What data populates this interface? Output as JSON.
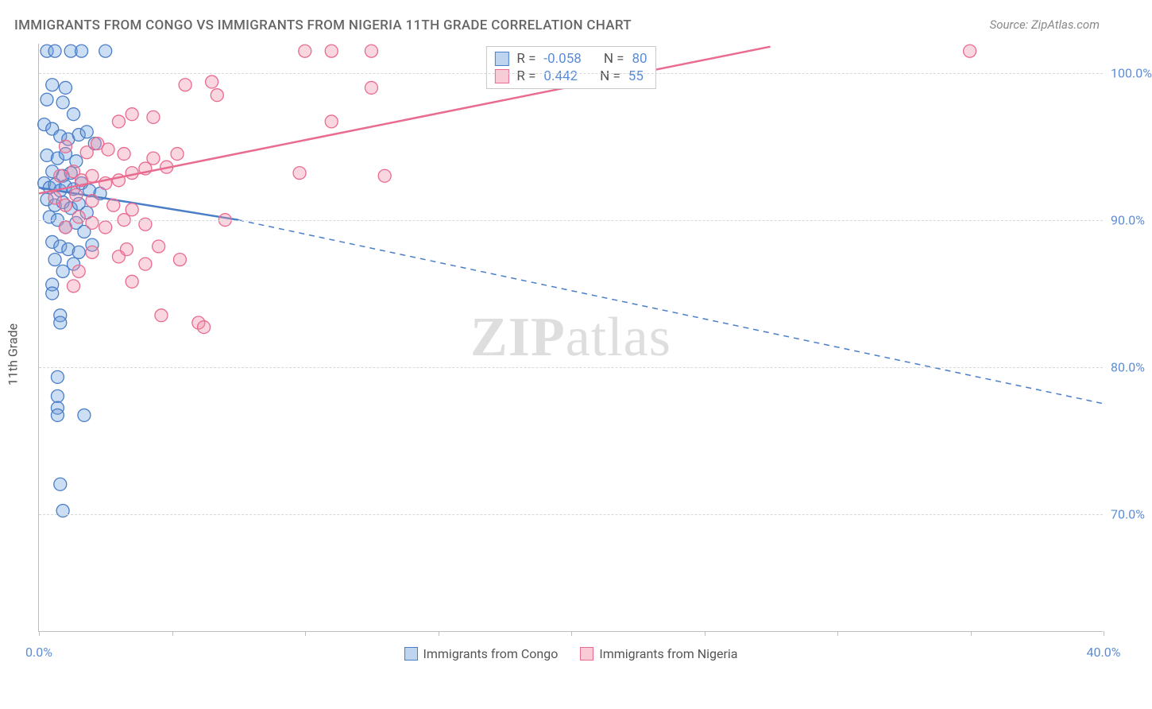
{
  "title": "IMMIGRANTS FROM CONGO VS IMMIGRANTS FROM NIGERIA 11TH GRADE CORRELATION CHART",
  "source": "Source: ZipAtlas.com",
  "y_axis_label": "11th Grade",
  "watermark_a": "ZIP",
  "watermark_b": "atlas",
  "chart": {
    "type": "scatter",
    "background_color": "#ffffff",
    "grid_color": "#d8d8d8",
    "axis_color": "#bdbdbd",
    "xlim": [
      0,
      40
    ],
    "ylim": [
      62,
      102
    ],
    "x_ticks": [
      0,
      5,
      10,
      15,
      20,
      25,
      30,
      35,
      40
    ],
    "x_tick_labels": {
      "0": "0.0%",
      "40": "40.0%"
    },
    "y_grid": [
      70,
      80,
      90,
      100
    ],
    "y_tick_labels": {
      "70": "70.0%",
      "80": "80.0%",
      "90": "90.0%",
      "100": "100.0%"
    },
    "marker_radius": 8,
    "marker_fill_opacity": 0.35,
    "line_width": 2.5,
    "series": [
      {
        "name": "Immigrants from Congo",
        "color": "#6ea0dc",
        "stroke": "#4a7ec9",
        "R": -0.058,
        "N": 80,
        "trend": {
          "x1": 0,
          "y1": 92.2,
          "x2": 7.5,
          "y2": 90.0,
          "dash_x2": 40,
          "dash_y2": 77.5
        },
        "points": [
          [
            0.3,
            101.5
          ],
          [
            0.6,
            101.5
          ],
          [
            1.2,
            101.5
          ],
          [
            1.6,
            101.5
          ],
          [
            2.5,
            101.5
          ],
          [
            0.5,
            99.2
          ],
          [
            1.0,
            99.0
          ],
          [
            0.3,
            98.2
          ],
          [
            0.9,
            98.0
          ],
          [
            1.3,
            97.2
          ],
          [
            0.2,
            96.5
          ],
          [
            0.5,
            96.2
          ],
          [
            0.8,
            95.7
          ],
          [
            1.1,
            95.5
          ],
          [
            1.5,
            95.8
          ],
          [
            1.8,
            96.0
          ],
          [
            2.1,
            95.2
          ],
          [
            0.3,
            94.4
          ],
          [
            0.7,
            94.2
          ],
          [
            1.0,
            94.5
          ],
          [
            1.4,
            94.0
          ],
          [
            0.5,
            93.3
          ],
          [
            0.9,
            93.0
          ],
          [
            1.2,
            93.2
          ],
          [
            0.2,
            92.5
          ],
          [
            0.4,
            92.2
          ],
          [
            0.6,
            92.4
          ],
          [
            0.8,
            92.0
          ],
          [
            1.0,
            92.3
          ],
          [
            1.3,
            92.1
          ],
          [
            1.6,
            92.5
          ],
          [
            1.9,
            92.0
          ],
          [
            2.3,
            91.8
          ],
          [
            0.3,
            91.4
          ],
          [
            0.6,
            91.0
          ],
          [
            0.9,
            91.2
          ],
          [
            1.2,
            90.8
          ],
          [
            1.5,
            91.1
          ],
          [
            1.8,
            90.5
          ],
          [
            0.4,
            90.2
          ],
          [
            0.7,
            90.0
          ],
          [
            1.0,
            89.5
          ],
          [
            1.4,
            89.8
          ],
          [
            1.7,
            89.2
          ],
          [
            0.5,
            88.5
          ],
          [
            0.8,
            88.2
          ],
          [
            1.1,
            88.0
          ],
          [
            1.5,
            87.8
          ],
          [
            2.0,
            88.3
          ],
          [
            0.6,
            87.3
          ],
          [
            0.9,
            86.5
          ],
          [
            1.3,
            87.0
          ],
          [
            0.5,
            85.6
          ],
          [
            0.5,
            85.0
          ],
          [
            0.8,
            83.5
          ],
          [
            0.8,
            83.0
          ],
          [
            0.7,
            79.3
          ],
          [
            0.7,
            78.0
          ],
          [
            0.7,
            77.2
          ],
          [
            0.7,
            76.7
          ],
          [
            1.7,
            76.7
          ],
          [
            0.8,
            72.0
          ],
          [
            0.9,
            70.2
          ]
        ]
      },
      {
        "name": "Immigrants from Nigeria",
        "color": "#f08ca5",
        "stroke": "#e96b8f",
        "R": 0.442,
        "N": 55,
        "trend": {
          "x1": 0,
          "y1": 91.8,
          "x2": 27.5,
          "y2": 101.8
        },
        "points": [
          [
            10.0,
            101.5
          ],
          [
            11.0,
            101.5
          ],
          [
            12.5,
            101.5
          ],
          [
            35.0,
            101.5
          ],
          [
            5.5,
            99.2
          ],
          [
            6.5,
            99.4
          ],
          [
            6.7,
            98.5
          ],
          [
            12.5,
            99.0
          ],
          [
            3.0,
            96.7
          ],
          [
            3.5,
            97.2
          ],
          [
            4.3,
            97.0
          ],
          [
            11.0,
            96.7
          ],
          [
            1.0,
            95.0
          ],
          [
            1.8,
            94.6
          ],
          [
            2.2,
            95.2
          ],
          [
            2.6,
            94.8
          ],
          [
            3.2,
            94.5
          ],
          [
            4.3,
            94.2
          ],
          [
            5.2,
            94.5
          ],
          [
            0.8,
            93.0
          ],
          [
            1.3,
            93.3
          ],
          [
            1.6,
            92.7
          ],
          [
            2.0,
            93.0
          ],
          [
            2.5,
            92.5
          ],
          [
            3.0,
            92.7
          ],
          [
            3.5,
            93.2
          ],
          [
            4.0,
            93.5
          ],
          [
            4.8,
            93.6
          ],
          [
            0.6,
            91.5
          ],
          [
            1.0,
            91.0
          ],
          [
            1.4,
            91.7
          ],
          [
            2.0,
            91.3
          ],
          [
            2.8,
            91.0
          ],
          [
            3.5,
            90.7
          ],
          [
            9.8,
            93.2
          ],
          [
            13.0,
            93.0
          ],
          [
            1.0,
            89.5
          ],
          [
            1.5,
            90.2
          ],
          [
            2.0,
            89.8
          ],
          [
            2.5,
            89.5
          ],
          [
            3.2,
            90.0
          ],
          [
            4.0,
            89.7
          ],
          [
            7.0,
            90.0
          ],
          [
            2.0,
            87.8
          ],
          [
            3.0,
            87.5
          ],
          [
            3.3,
            88.0
          ],
          [
            4.5,
            88.2
          ],
          [
            1.5,
            86.5
          ],
          [
            4.0,
            87.0
          ],
          [
            5.3,
            87.3
          ],
          [
            3.5,
            85.8
          ],
          [
            1.3,
            85.5
          ],
          [
            4.6,
            83.5
          ],
          [
            6.0,
            83.0
          ],
          [
            6.2,
            82.7
          ]
        ]
      }
    ]
  },
  "stats_labels": {
    "R": "R =",
    "N": "N ="
  },
  "legend": {
    "congo": "Immigrants from Congo",
    "nigeria": "Immigrants from Nigeria"
  }
}
